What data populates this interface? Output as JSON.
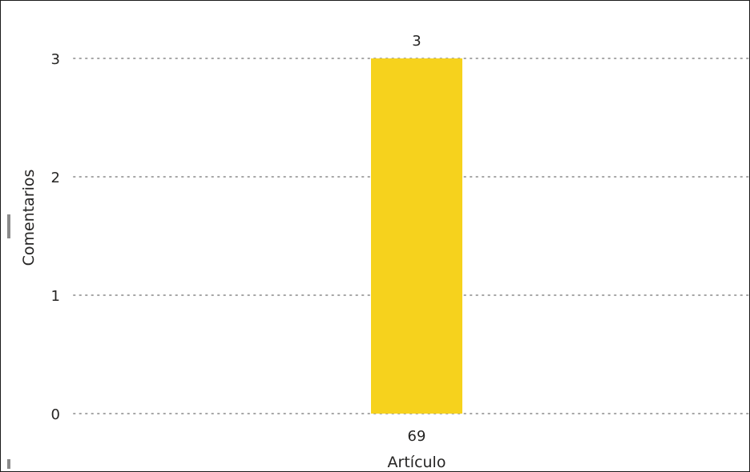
{
  "chart_data": {
    "type": "bar",
    "categories": [
      "69"
    ],
    "values": [
      3
    ],
    "data_labels": [
      "3"
    ],
    "xlabel": "Artículo",
    "ylabel": "Comentarios",
    "ylim": [
      0,
      3
    ],
    "yticks": [
      0,
      1,
      2,
      3
    ],
    "grid": true,
    "legend": "none",
    "bar_color": "#F6D21D",
    "gridline_color": "#A6A6A6"
  }
}
